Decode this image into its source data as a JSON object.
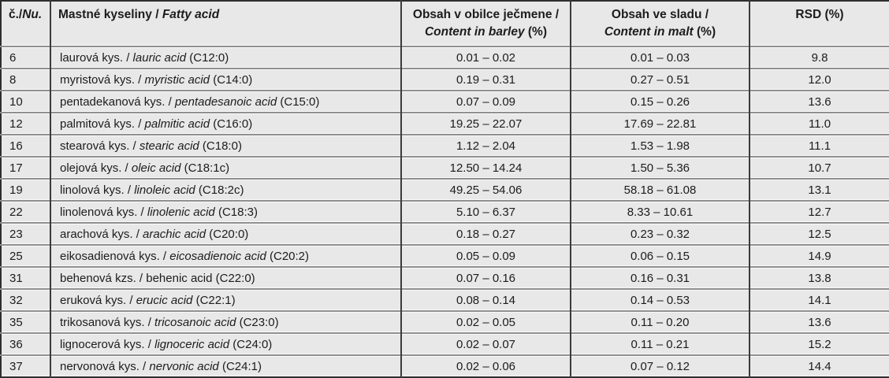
{
  "header": {
    "col_num": {
      "cs": "č./",
      "en": "Nu."
    },
    "col_name": {
      "cs": "Mastné kyseliny / ",
      "en": "Fatty acid"
    },
    "col_barley": {
      "cs": "Obsah v obilce ječmene /",
      "en": "Content in barley",
      "unit": " (%)"
    },
    "col_malt": {
      "cs": "Obsah ve sladu /",
      "en": "Content in malt",
      "unit": " (%)"
    },
    "col_rsd": {
      "label": "RSD (%)"
    }
  },
  "format": {
    "name_separator": " / ",
    "formula_prefix": " "
  },
  "rows": [
    {
      "num": "6",
      "name_cs": "laurová kys.",
      "name_en": "lauric acid",
      "en_italic": true,
      "formula": "(C12:0)",
      "barley": "0.01 – 0.02",
      "malt": "0.01 – 0.03",
      "rsd": "9.8"
    },
    {
      "num": "8",
      "name_cs": "myristová kys.",
      "name_en": "myristic acid",
      "en_italic": true,
      "formula": "(C14:0)",
      "barley": "0.19 – 0.31",
      "malt": "0.27 – 0.51",
      "rsd": "12.0"
    },
    {
      "num": "10",
      "name_cs": "pentadekanová kys.",
      "name_en": "pentadesanoic acid",
      "en_italic": true,
      "formula": "(C15:0)",
      "barley": "0.07 – 0.09",
      "malt": "0.15 – 0.26",
      "rsd": "13.6"
    },
    {
      "num": "12",
      "name_cs": "palmitová kys.",
      "name_en": "palmitic acid",
      "en_italic": true,
      "formula": "(C16:0)",
      "barley": "19.25 – 22.07",
      "malt": "17.69 – 22.81",
      "rsd": "11.0"
    },
    {
      "num": "16",
      "name_cs": "stearová kys.",
      "name_en": "stearic acid",
      "en_italic": true,
      "formula": "(C18:0)",
      "barley": "1.12 – 2.04",
      "malt": "1.53 – 1.98",
      "rsd": "11.1"
    },
    {
      "num": "17",
      "name_cs": "olejová kys.",
      "name_en": "oleic acid",
      "en_italic": true,
      "formula": "(C18:1c)",
      "barley": "12.50 – 14.24",
      "malt": "1.50 – 5.36",
      "rsd": "10.7"
    },
    {
      "num": "19",
      "name_cs": "linolová kys.",
      "name_en": "linoleic acid",
      "en_italic": true,
      "formula": "(C18:2c)",
      "barley": "49.25 – 54.06",
      "malt": "58.18 – 61.08",
      "rsd": "13.1"
    },
    {
      "num": "22",
      "name_cs": "linolenová kys.",
      "name_en": "linolenic acid",
      "en_italic": true,
      "formula": "(C18:3)",
      "barley": "5.10 – 6.37",
      "malt": "8.33 – 10.61",
      "rsd": "12.7"
    },
    {
      "num": "23",
      "name_cs": "arachová kys.",
      "name_en": "arachic acid",
      "en_italic": true,
      "formula": "(C20:0)",
      "barley": "0.18 – 0.27",
      "malt": "0.23 – 0.32",
      "rsd": "12.5"
    },
    {
      "num": "25",
      "name_cs": "eikosadienová kys.",
      "name_en": "eicosadienoic acid",
      "en_italic": true,
      "formula": "(C20:2)",
      "barley": "0.05 – 0.09",
      "malt": "0.06 – 0.15",
      "rsd": "14.9"
    },
    {
      "num": "31",
      "name_cs": "behenová kzs.",
      "name_en": "behenic acid",
      "en_italic": false,
      "formula": "(C22:0)",
      "barley": "0.07 – 0.16",
      "malt": "0.16 – 0.31",
      "rsd": "13.8"
    },
    {
      "num": "32",
      "name_cs": "eruková kys.",
      "name_en": "erucic acid",
      "en_italic": true,
      "formula": "(C22:1)",
      "barley": "0.08 – 0.14",
      "malt": "0.14 – 0.53",
      "rsd": "14.1"
    },
    {
      "num": "35",
      "name_cs": "trikosanová kys.",
      "name_en": "tricosanoic acid",
      "en_italic": true,
      "formula": "(C23:0)",
      "barley": "0.02 – 0.05",
      "malt": "0.11 – 0.20",
      "rsd": "13.6"
    },
    {
      "num": "36",
      "name_cs": "lignocerová kys.",
      "name_en": "lignoceric acid",
      "en_italic": true,
      "formula": "(C24:0)",
      "barley": "0.02 – 0.07",
      "malt": "0.11 – 0.21",
      "rsd": "15.2"
    },
    {
      "num": "37",
      "name_cs": "nervonová kys.",
      "name_en": "nervonic acid",
      "en_italic": true,
      "formula": "(C24:1)",
      "barley": "0.02 – 0.06",
      "malt": "0.07 – 0.12",
      "rsd": "14.4"
    }
  ],
  "colors": {
    "cell_background": "#e8e8e8",
    "outer_border": "#2e2e2e",
    "column_rule": "#3b3b3b",
    "row_rule": "#8f8f8f",
    "row_rule_highlight": "#fafafa",
    "text": "#1c1c1c"
  }
}
